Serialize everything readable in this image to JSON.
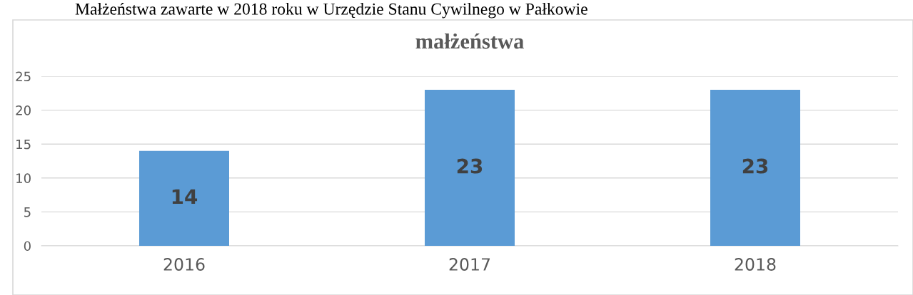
{
  "chart_data": {
    "type": "bar",
    "title": "małżeństwa",
    "annotations": [
      "Małżeństwa zawarte w 2018 roku w Urzędzie Stanu Cywilnego w Pałkowie"
    ],
    "categories": [
      "2016",
      "2017",
      "2018"
    ],
    "series": [
      {
        "color": "#5b9bd5",
        "values": [
          14,
          23,
          23
        ]
      }
    ],
    "ylim": [
      0,
      25
    ],
    "yticks": [
      0,
      5,
      10,
      15,
      20,
      25
    ],
    "grid": "y",
    "data_labels": true
  }
}
